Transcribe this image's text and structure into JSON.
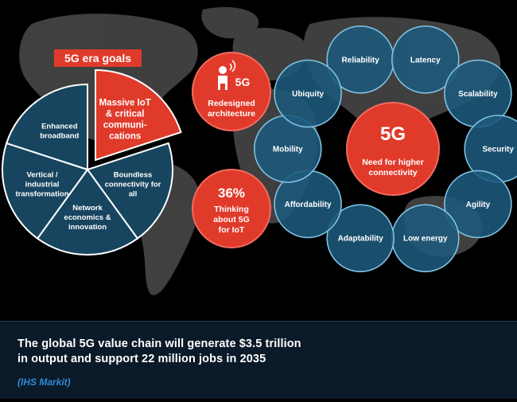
{
  "goals": {
    "title": "5G era goals",
    "segments": [
      {
        "label": "Massive IoT & critical communi-cations",
        "lines": [
          "Massive IoT",
          "& critical",
          "communi-",
          "cations"
        ],
        "highlight": true
      },
      {
        "label": "Boundless connectivity for all",
        "lines": [
          "Boundless",
          "connectivity for",
          "all"
        ],
        "highlight": false
      },
      {
        "label": "Network economics & innovation",
        "lines": [
          "Network",
          "economics &",
          "innovation"
        ],
        "highlight": false
      },
      {
        "label": "Vertical / industrial transformation",
        "lines": [
          "Vertical /",
          "industrial",
          "transformation"
        ],
        "highlight": false
      },
      {
        "label": "Enhanced broadband",
        "lines": [
          "Enhanced",
          "broadband"
        ],
        "highlight": false
      }
    ]
  },
  "redesign": {
    "badge": "5G",
    "lines": [
      "Redesigned",
      "architecture"
    ]
  },
  "iot": {
    "value": "36%",
    "lines": [
      "Thinking",
      "about 5G",
      "for IoT"
    ]
  },
  "center": {
    "title": "5G",
    "lines": [
      "Need for higher",
      "connectivity"
    ]
  },
  "ring": [
    {
      "label": "Reliability"
    },
    {
      "label": "Latency"
    },
    {
      "label": "Scalability"
    },
    {
      "label": "Security"
    },
    {
      "label": "Agility"
    },
    {
      "label": "Low energy"
    },
    {
      "label": "Adaptability"
    },
    {
      "label": "Affordability"
    },
    {
      "label": "Mobility"
    },
    {
      "label": "Ubiquity"
    }
  ],
  "caption": {
    "line1": "The global 5G value chain will generate $3.5 trillion",
    "line2": "in output and support 22 million jobs in 2035",
    "source": "(IHS Markit)"
  },
  "colors": {
    "accent_red": "#e03a2b",
    "bubble_blue": "#1d5a7c",
    "bubble_stroke": "#7fc0e0",
    "pie_blue": "#17455f"
  }
}
